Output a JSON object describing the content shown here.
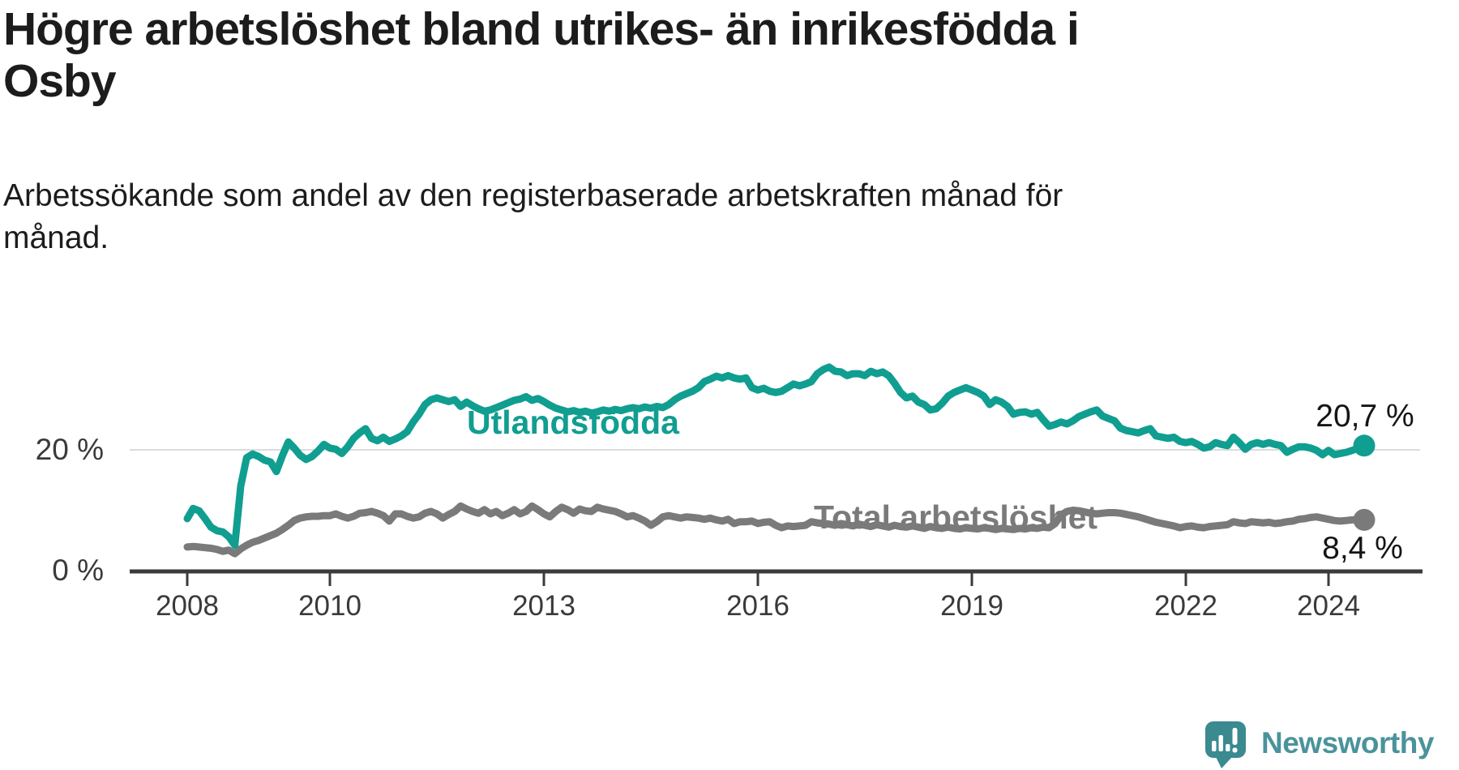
{
  "header": {
    "title_lines": [
      "Högre arbetslöshet bland utrikes- än inrikesfödda i",
      "Osby"
    ],
    "subtitle_lines": [
      "Arbetssökande som andel av den registerbaserade arbetskraften månad för",
      "månad."
    ]
  },
  "series_labels": {
    "foreign_born": "Utlandsfödda",
    "total": "Total arbetslöshet"
  },
  "end_labels": {
    "foreign_born": "20,7 %",
    "total": "8,4 %"
  },
  "logo": {
    "text": "Newsworthy",
    "mark": "speech-bubble-with-bar-chart-and-exclamation"
  },
  "colors": {
    "foreign_born": "#109e91",
    "total": "#7a7a7a",
    "axis": "#3b3b3b",
    "tick_text": "#3a3a3a",
    "gridline": "#dcdcdc",
    "value_label": "#151515",
    "title_text": "#1c1c1c",
    "logo_bubble": "#3a8a90",
    "logo_text": "#4b939b",
    "background": "#ffffff"
  },
  "chart_data": {
    "type": "line",
    "title": "Högre arbetslöshet bland utrikes- än inrikesfödda i Osby",
    "subtitle": "Arbetssökande som andel av den registerbaserade arbetskraften månad för månad.",
    "unit": "percent",
    "frequency": "monthly",
    "x_start": "2008-01",
    "x_end": "2024-07",
    "ylim": [
      0,
      35
    ],
    "legend_position": "inline-labels-on-lines",
    "grid": "single horizontal gridline at 20 %",
    "x_ticks": [
      {
        "label": "2008",
        "year": 2008
      },
      {
        "label": "2010",
        "year": 2010
      },
      {
        "label": "2013",
        "year": 2013
      },
      {
        "label": "2016",
        "year": 2016
      },
      {
        "label": "2019",
        "year": 2019
      },
      {
        "label": "2022",
        "year": 2022
      },
      {
        "label": "2024",
        "year": 2024
      }
    ],
    "y_ticks": [
      {
        "label": "20 %",
        "value": 20,
        "gridline": true
      },
      {
        "label": "0 %",
        "value": 0,
        "gridline": false
      }
    ],
    "series": [
      {
        "key": "utlandsfodda",
        "name": "Utlandsfödda",
        "color": "#109e91",
        "end_label": "20,7 %",
        "end_value": 20.7,
        "values": [
          8.6,
          10.3,
          9.9,
          8.6,
          7.2,
          6.6,
          6.4,
          5.6,
          4.2,
          14.0,
          18.7,
          19.3,
          18.9,
          18.3,
          18.0,
          16.4,
          19.0,
          21.3,
          20.3,
          19.1,
          18.4,
          18.9,
          19.8,
          20.9,
          20.3,
          20.1,
          19.4,
          20.5,
          21.9,
          22.8,
          23.5,
          21.9,
          21.5,
          22.1,
          21.4,
          21.8,
          22.3,
          23.0,
          24.6,
          25.9,
          27.5,
          28.3,
          28.6,
          28.3,
          28.0,
          28.3,
          27.2,
          27.9,
          27.3,
          26.8,
          26.4,
          26.6,
          27.0,
          27.4,
          27.8,
          28.2,
          28.4,
          28.8,
          28.2,
          28.5,
          28.0,
          27.4,
          26.9,
          26.6,
          26.3,
          26.5,
          26.2,
          26.4,
          26.1,
          26.3,
          26.6,
          26.4,
          26.7,
          26.5,
          26.8,
          27.0,
          26.8,
          27.1,
          26.9,
          27.2,
          27.0,
          27.5,
          28.3,
          28.9,
          29.3,
          29.7,
          30.3,
          31.3,
          31.7,
          32.2,
          31.9,
          32.3,
          31.9,
          31.7,
          31.9,
          30.3,
          29.9,
          30.2,
          29.7,
          29.5,
          29.7,
          30.3,
          30.9,
          30.6,
          30.9,
          31.3,
          32.6,
          33.3,
          33.7,
          33.0,
          32.9,
          32.3,
          32.6,
          32.6,
          32.3,
          33.0,
          32.6,
          32.9,
          32.3,
          31.0,
          29.5,
          28.6,
          28.9,
          27.9,
          27.5,
          26.6,
          26.8,
          27.7,
          28.9,
          29.5,
          29.9,
          30.3,
          29.9,
          29.5,
          28.9,
          27.5,
          28.3,
          27.9,
          27.2,
          25.9,
          26.2,
          26.3,
          25.9,
          26.2,
          25.0,
          23.9,
          24.2,
          24.6,
          24.3,
          24.8,
          25.5,
          25.9,
          26.3,
          26.6,
          25.6,
          25.2,
          24.8,
          23.6,
          23.2,
          23.0,
          22.8,
          23.2,
          23.5,
          22.3,
          22.1,
          21.9,
          22.1,
          21.4,
          21.2,
          21.4,
          20.9,
          20.3,
          20.5,
          21.2,
          20.9,
          20.7,
          22.1,
          21.2,
          20.1,
          20.9,
          21.2,
          20.9,
          21.2,
          20.9,
          20.7,
          19.6,
          20.1,
          20.5,
          20.5,
          20.3,
          19.9,
          19.2,
          19.9,
          19.2,
          19.4,
          19.6,
          19.9,
          20.3,
          20.7
        ]
      },
      {
        "key": "total",
        "name": "Total arbetslöshet",
        "color": "#7a7a7a",
        "end_label": "8,4 %",
        "end_value": 8.4,
        "values": [
          3.9,
          4.0,
          3.9,
          3.8,
          3.7,
          3.5,
          3.2,
          3.4,
          2.8,
          3.6,
          4.2,
          4.7,
          5.0,
          5.4,
          5.8,
          6.2,
          6.8,
          7.5,
          8.3,
          8.7,
          8.9,
          9.0,
          9.0,
          9.1,
          9.1,
          9.4,
          9.0,
          8.7,
          9.0,
          9.5,
          9.6,
          9.8,
          9.5,
          9.1,
          8.2,
          9.4,
          9.4,
          9.0,
          8.7,
          8.9,
          9.5,
          9.8,
          9.4,
          8.7,
          9.3,
          9.8,
          10.7,
          10.2,
          9.8,
          9.5,
          10.1,
          9.4,
          9.8,
          9.1,
          9.5,
          10.1,
          9.4,
          9.8,
          10.7,
          10.1,
          9.4,
          8.9,
          9.8,
          10.5,
          10.1,
          9.5,
          10.2,
          9.9,
          9.8,
          10.5,
          10.2,
          10.0,
          9.8,
          9.4,
          8.9,
          9.1,
          8.7,
          8.2,
          7.5,
          8.1,
          8.9,
          9.1,
          8.9,
          8.7,
          8.9,
          8.8,
          8.7,
          8.5,
          8.7,
          8.4,
          8.2,
          8.5,
          7.8,
          8.1,
          8.1,
          8.2,
          7.8,
          8.0,
          8.1,
          7.5,
          7.1,
          7.4,
          7.3,
          7.4,
          7.5,
          8.1,
          7.9,
          7.8,
          7.7,
          7.5,
          7.8,
          7.6,
          7.4,
          7.7,
          7.5,
          7.3,
          7.6,
          7.4,
          7.2,
          7.5,
          7.3,
          7.2,
          7.4,
          7.2,
          7.0,
          7.3,
          7.1,
          7.0,
          7.2,
          7.0,
          6.9,
          7.1,
          7.0,
          6.9,
          7.1,
          7.0,
          6.8,
          7.0,
          6.9,
          6.8,
          7.0,
          6.9,
          7.1,
          7.0,
          7.2,
          7.1,
          7.8,
          9.2,
          9.8,
          10.0,
          9.9,
          9.7,
          9.5,
          9.4,
          9.5,
          9.6,
          9.6,
          9.5,
          9.3,
          9.1,
          8.9,
          8.6,
          8.3,
          8.0,
          7.8,
          7.6,
          7.4,
          7.1,
          7.3,
          7.4,
          7.2,
          7.1,
          7.3,
          7.4,
          7.5,
          7.6,
          8.1,
          7.9,
          7.8,
          8.1,
          8.0,
          7.9,
          8.0,
          7.8,
          7.9,
          8.1,
          8.2,
          8.5,
          8.6,
          8.8,
          8.9,
          8.7,
          8.5,
          8.3,
          8.2,
          8.3,
          8.4,
          8.4,
          8.4
        ]
      }
    ]
  }
}
